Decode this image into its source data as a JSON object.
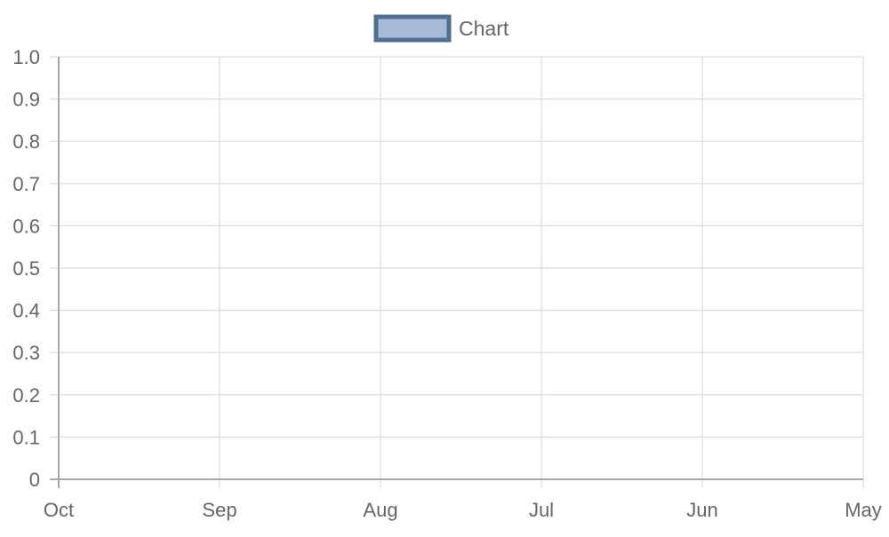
{
  "chart_data": {
    "type": "line",
    "title": "",
    "xlabel": "",
    "ylabel": "",
    "legend_position": "top-center",
    "grid": true,
    "series": [
      {
        "name": "Chart",
        "border_color": "#4d6e99",
        "fill_color": "#a9bbd6",
        "values": []
      }
    ],
    "x_ticks": [
      "Oct",
      "Sep",
      "Aug",
      "Jul",
      "Jun",
      "May"
    ],
    "ylim": [
      0,
      1
    ],
    "y_ticks": [
      "0",
      "0.1",
      "0.2",
      "0.3",
      "0.4",
      "0.5",
      "0.6",
      "0.7",
      "0.8",
      "0.9",
      "1.0"
    ],
    "colors": {
      "grid": "#dcdcdc",
      "axis": "#a8a8a8",
      "text": "#666666"
    }
  }
}
